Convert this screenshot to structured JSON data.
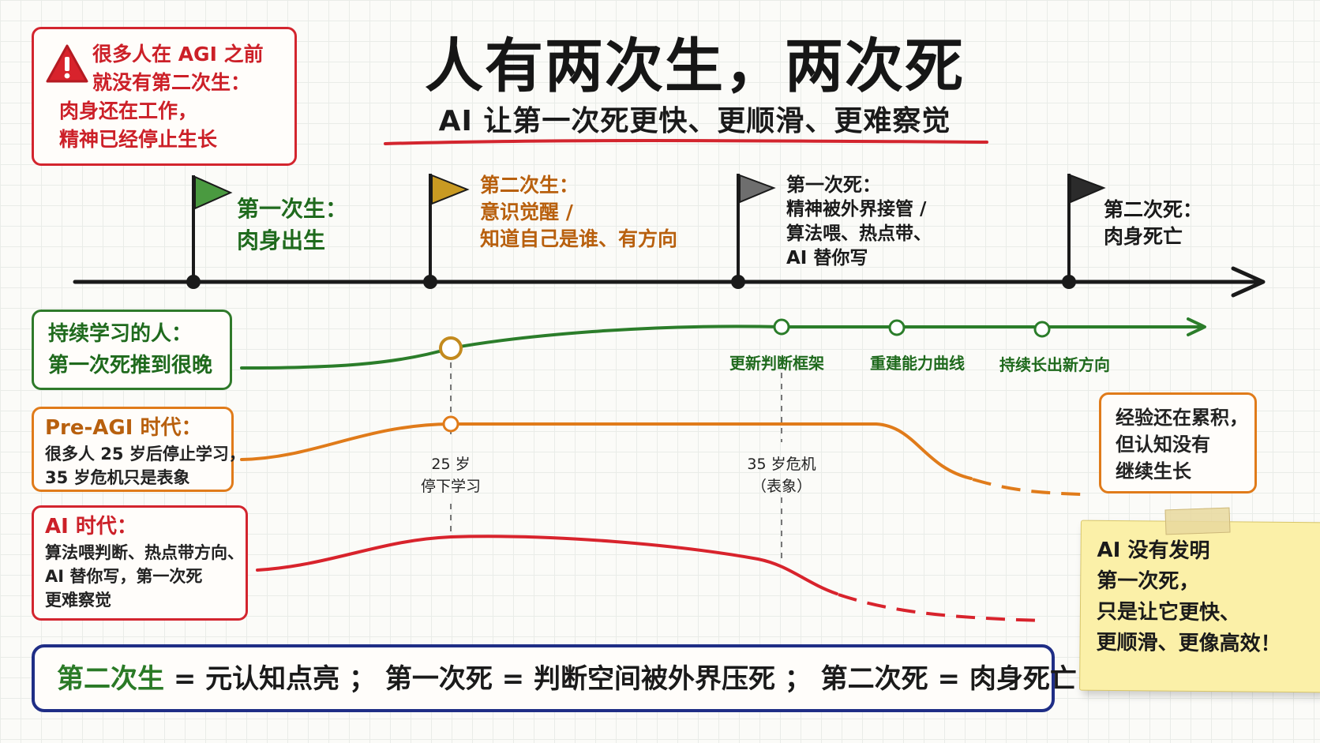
{
  "warning": {
    "icon": "warning-icon",
    "lines": [
      "很多人在 AGI 之前",
      "就没有第二次生：",
      "肉身还在工作，",
      "精神已经停止生长"
    ]
  },
  "title": "人有两次生，两次死",
  "subtitle": "AI 让第一次死更快、更顺滑、更难察觉",
  "milestones": [
    {
      "lines": [
        "第一次生：",
        "肉身出生"
      ],
      "flag_color": "#4a9a40"
    },
    {
      "lines": [
        "第二次生：",
        "意识觉醒 /",
        "知道自己是谁、有方向"
      ],
      "flag_color": "#c99a22"
    },
    {
      "lines": [
        "第一次死：",
        "精神被外界接管 /",
        "算法喂、热点带、",
        "AI 替你写"
      ],
      "flag_color": "#6e6e6e"
    },
    {
      "lines": [
        "第二次死：",
        "肉身死亡"
      ],
      "flag_color": "#2b2b2b"
    }
  ],
  "learners": {
    "title": "持续学习的人：",
    "subtitle": "第一次死推到很晚",
    "points": [
      "更新判断框架",
      "重建能力曲线",
      "持续长出新方向"
    ]
  },
  "pre_agi": {
    "title": "Pre-AGI 时代：",
    "lines": [
      "很多人 25 岁后停止学习，",
      "35 岁危机只是表象"
    ]
  },
  "ai_era": {
    "title": "AI 时代：",
    "lines": [
      "算法喂判断、热点带方向、",
      "AI 替你写，第一次死",
      "更难察觉"
    ]
  },
  "annotations": {
    "age25": [
      "25 岁",
      "停下学习"
    ],
    "age35": [
      "35 岁危机",
      "（表象）"
    ]
  },
  "right_note": [
    "经验还在累积，",
    "但认知没有",
    "继续生长"
  ],
  "sticky": [
    "AI 没有发明",
    "第一次死，",
    "只是让它更快、",
    "更顺滑、更像高效！"
  ],
  "summary": {
    "term": "第二次生",
    "rest": " = 元认知点亮 ； 第一次死 = 判断空间被外界压死 ； 第二次死 = 肉身死亡"
  },
  "colors": {
    "green": "#2b7d2a",
    "orange": "#e07b1a",
    "red": "#d8232c",
    "navy": "#1f2e86",
    "accent_red": "#d3252e"
  }
}
